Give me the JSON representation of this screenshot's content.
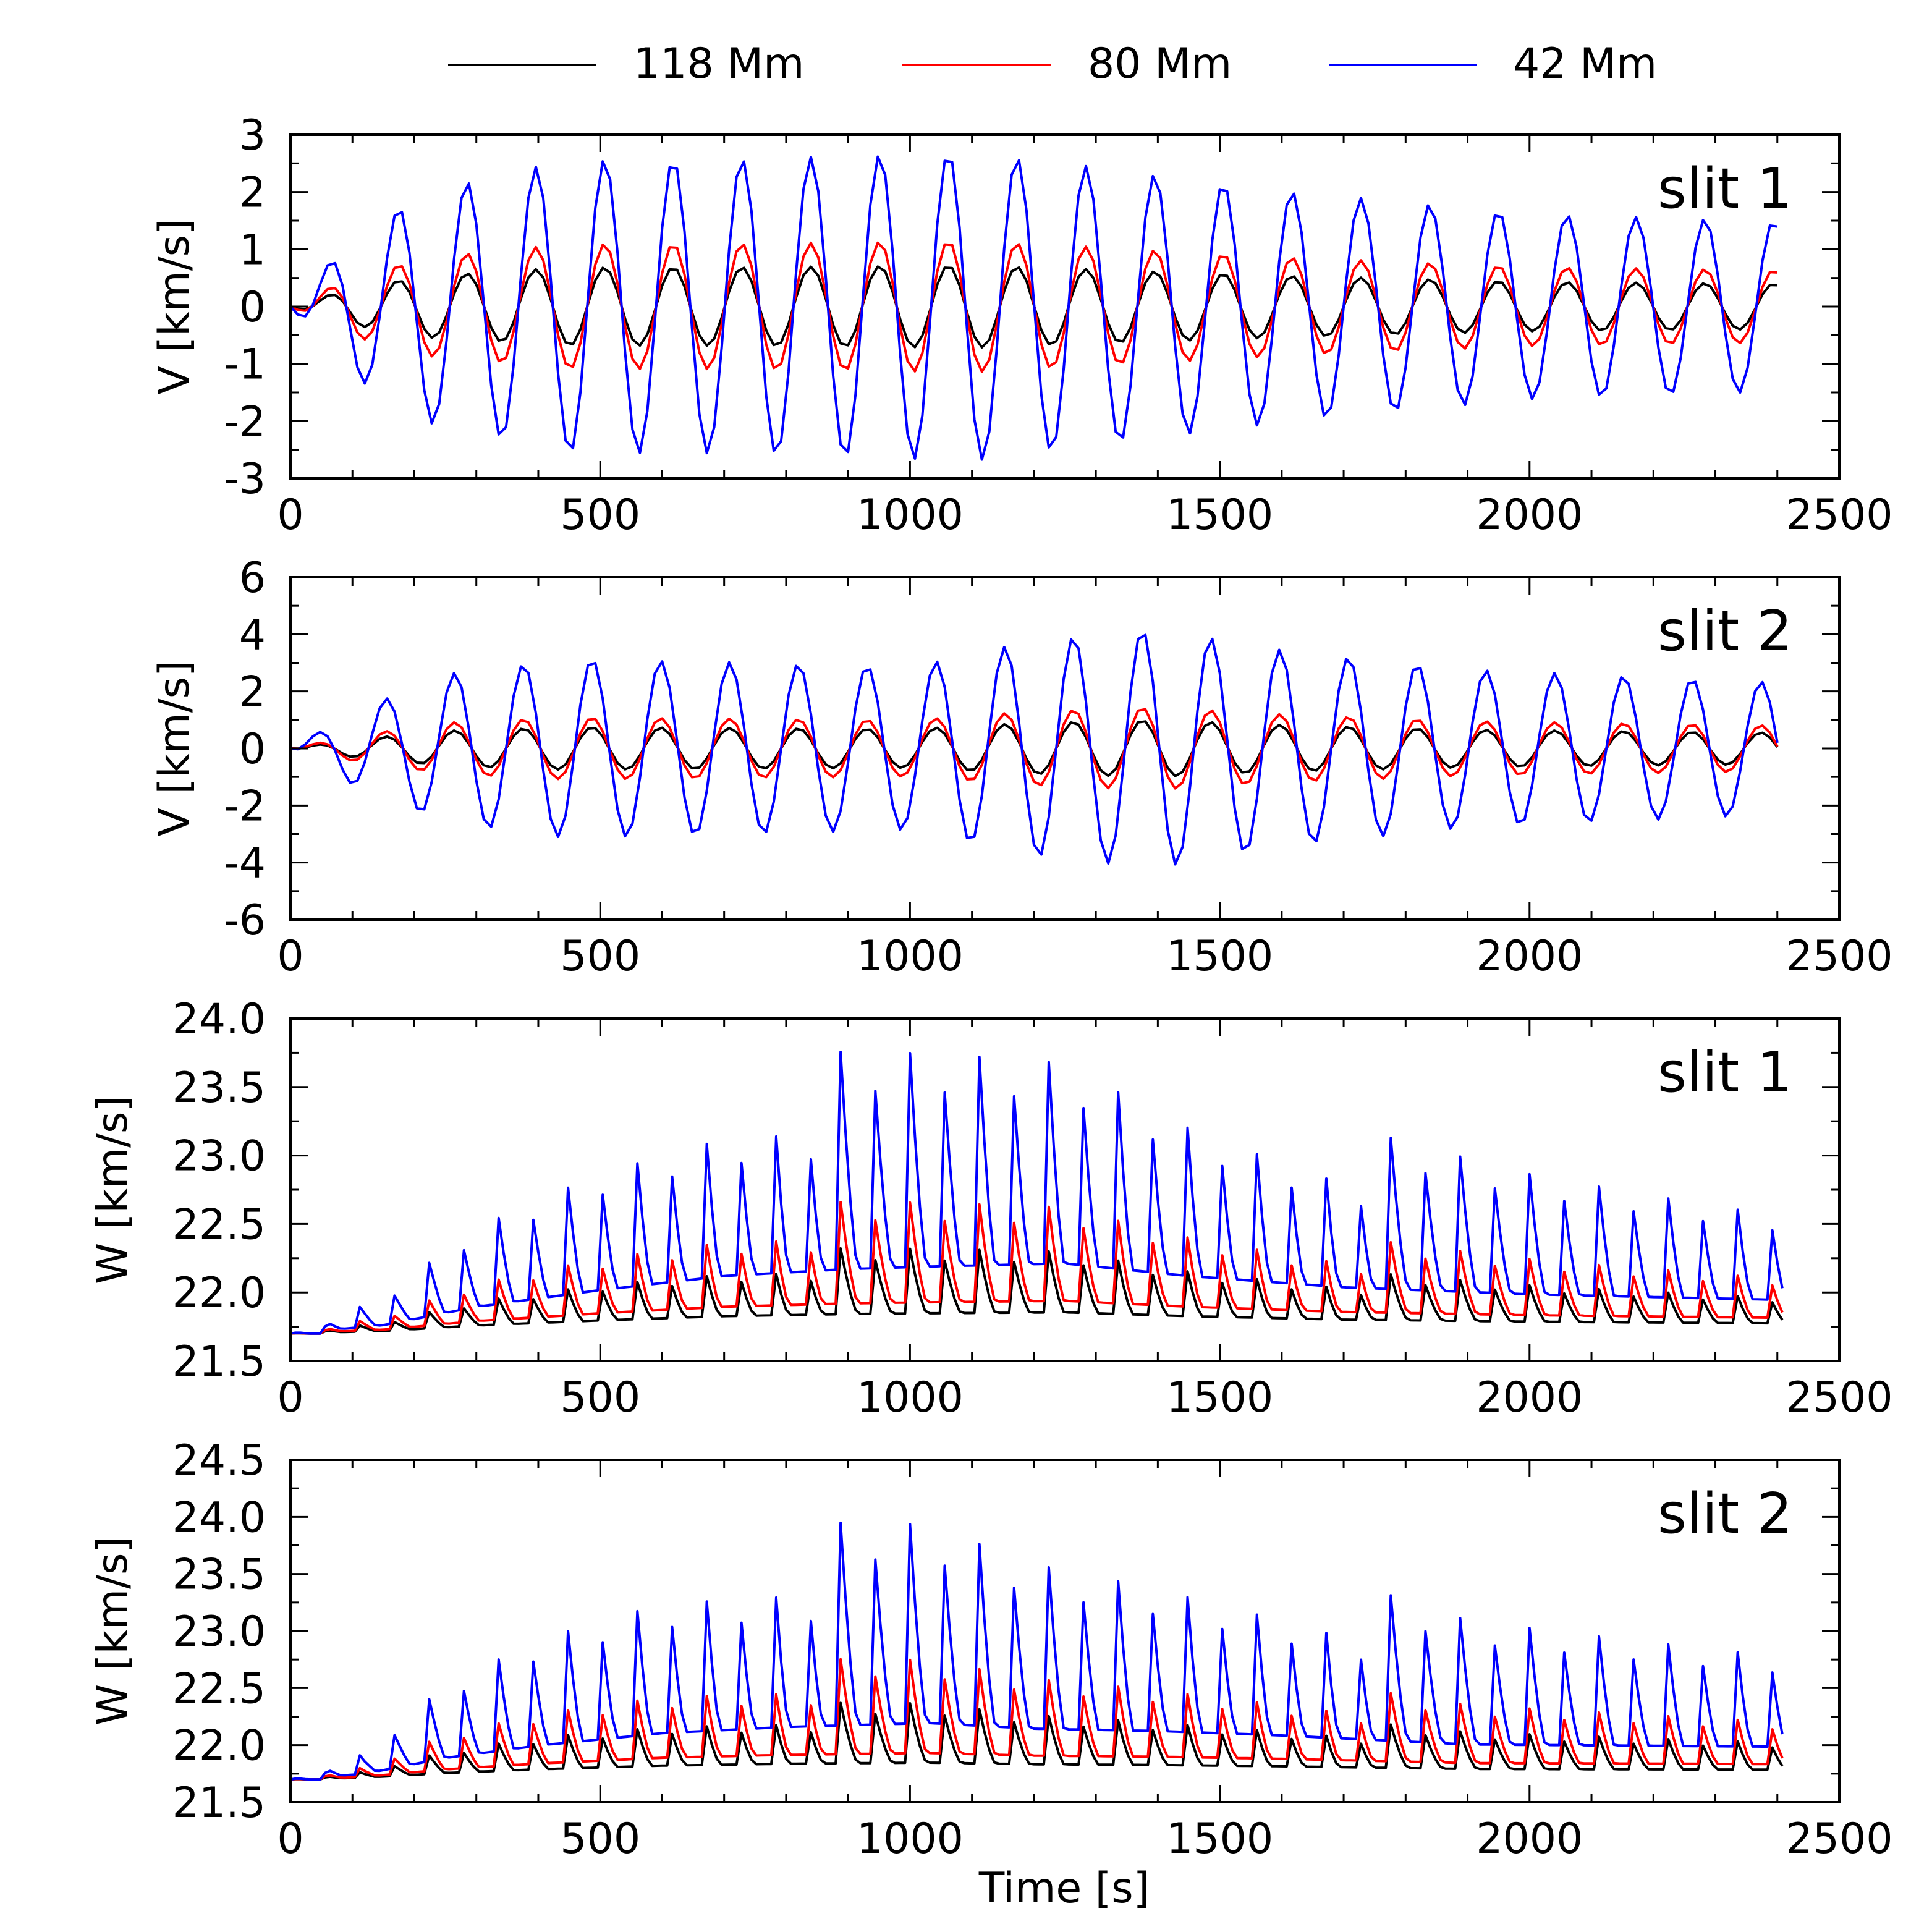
{
  "figure": {
    "xlabel": "Time [s]",
    "legend": [
      {
        "label": "118 Mm",
        "color": "#000000"
      },
      {
        "label": "80 Mm",
        "color": "#ff0000"
      },
      {
        "label": "42 Mm",
        "color": "#0000ff"
      }
    ]
  },
  "chart_data": [
    {
      "type": "line",
      "title": "slit 1",
      "xlabel": "",
      "ylabel": "V [km/s]",
      "xlim": [
        0,
        2500
      ],
      "ylim": [
        -3,
        3
      ],
      "xticks": [
        0,
        500,
        1000,
        1500,
        2000,
        2500
      ],
      "yticks": [
        -3,
        -2,
        -1,
        0,
        1,
        2,
        3
      ],
      "ytick_labels": [
        "-3",
        "-2",
        "-1",
        "0",
        "1",
        "2",
        "3"
      ],
      "legend_position": "top",
      "signal": {
        "kind": "oscillation",
        "period_s": 111,
        "phase_s": 35,
        "t_end": 2410,
        "baseline": 0,
        "envelope": [
          [
            0,
            0
          ],
          [
            100,
            0.45
          ],
          [
            220,
            0.75
          ],
          [
            450,
            0.95
          ],
          [
            700,
            0.95
          ],
          [
            1100,
            1.0
          ],
          [
            1300,
            0.9
          ],
          [
            1600,
            0.75
          ],
          [
            2000,
            0.6
          ],
          [
            2410,
            0.55
          ]
        ]
      },
      "series": [
        {
          "name": "118 Mm",
          "color": "#000000",
          "amplitude": 0.72
        },
        {
          "name": "80 Mm",
          "color": "#ff0000",
          "amplitude": 1.15
        },
        {
          "name": "42 Mm",
          "color": "#0000ff",
          "amplitude": 2.7
        }
      ]
    },
    {
      "type": "line",
      "title": "slit 2",
      "xlabel": "",
      "ylabel": "V [km/s]",
      "xlim": [
        0,
        2500
      ],
      "ylim": [
        -6,
        6
      ],
      "xticks": [
        0,
        500,
        1000,
        1500,
        2000,
        2500
      ],
      "yticks": [
        -6,
        -4,
        -2,
        0,
        2,
        4,
        6
      ],
      "ytick_labels": [
        "-6",
        "-4",
        "-2",
        "0",
        "2",
        "4",
        "6"
      ],
      "signal": {
        "kind": "oscillation",
        "period_s": 111,
        "phase_s": 15,
        "t_end": 2410,
        "baseline": 0,
        "envelope": [
          [
            0,
            0
          ],
          [
            100,
            0.3
          ],
          [
            250,
            0.62
          ],
          [
            450,
            0.75
          ],
          [
            700,
            0.72
          ],
          [
            1000,
            0.68
          ],
          [
            1200,
            0.9
          ],
          [
            1400,
            1.0
          ],
          [
            1600,
            0.82
          ],
          [
            1900,
            0.66
          ],
          [
            2410,
            0.55
          ]
        ]
      },
      "series": [
        {
          "name": "118 Mm",
          "color": "#000000",
          "amplitude": 1.0
        },
        {
          "name": "80 Mm",
          "color": "#ff0000",
          "amplitude": 1.45
        },
        {
          "name": "42 Mm",
          "color": "#0000ff",
          "amplitude": 4.2
        }
      ]
    },
    {
      "type": "line",
      "title": "slit 1",
      "xlabel": "",
      "ylabel": "W [km/s]",
      "xlim": [
        0,
        2500
      ],
      "ylim": [
        21.5,
        24.0
      ],
      "xticks": [
        0,
        500,
        1000,
        1500,
        2000,
        2500
      ],
      "yticks": [
        21.5,
        22.0,
        22.5,
        23.0,
        23.5,
        24.0
      ],
      "ytick_labels": [
        "21.5",
        "22.0",
        "22.5",
        "23.0",
        "23.5",
        "24.0"
      ],
      "signal": {
        "kind": "spiky",
        "period_s": 55.5,
        "t_end": 2410,
        "baseline": 21.7,
        "dip": 0.35,
        "envelope": [
          [
            0,
            0
          ],
          [
            150,
            0.12
          ],
          [
            300,
            0.38
          ],
          [
            500,
            0.62
          ],
          [
            700,
            0.82
          ],
          [
            900,
            0.92
          ],
          [
            1050,
            0.96
          ],
          [
            1250,
            1.0
          ],
          [
            1450,
            0.82
          ],
          [
            1700,
            0.66
          ],
          [
            2000,
            0.56
          ],
          [
            2410,
            0.48
          ]
        ]
      },
      "series": [
        {
          "name": "118 Mm",
          "color": "#000000",
          "amplitude": 0.68
        },
        {
          "name": "80 Mm",
          "color": "#ff0000",
          "amplitude": 1.05
        },
        {
          "name": "42 Mm",
          "color": "#0000ff",
          "amplitude": 2.25
        }
      ]
    },
    {
      "type": "line",
      "title": "slit 2",
      "xlabel": "Time [s]",
      "ylabel": "W [km/s]",
      "xlim": [
        0,
        2500
      ],
      "ylim": [
        21.5,
        24.5
      ],
      "xticks": [
        0,
        500,
        1000,
        1500,
        2000,
        2500
      ],
      "yticks": [
        21.5,
        22.0,
        22.5,
        23.0,
        23.5,
        24.0,
        24.5
      ],
      "ytick_labels": [
        "21.5",
        "22.0",
        "22.5",
        "23.0",
        "23.5",
        "24.0",
        "24.5"
      ],
      "signal": {
        "kind": "spiky",
        "period_s": 55.5,
        "t_end": 2410,
        "baseline": 21.7,
        "dip": 0.4,
        "envelope": [
          [
            0,
            0
          ],
          [
            120,
            0.1
          ],
          [
            250,
            0.38
          ],
          [
            400,
            0.6
          ],
          [
            600,
            0.82
          ],
          [
            800,
            0.93
          ],
          [
            1030,
            1.0
          ],
          [
            1200,
            0.9
          ],
          [
            1400,
            0.86
          ],
          [
            1600,
            0.78
          ],
          [
            1900,
            0.62
          ],
          [
            2410,
            0.58
          ]
        ]
      },
      "series": [
        {
          "name": "118 Mm",
          "color": "#000000",
          "amplitude": 0.7
        },
        {
          "name": "80 Mm",
          "color": "#ff0000",
          "amplitude": 1.1
        },
        {
          "name": "42 Mm",
          "color": "#0000ff",
          "amplitude": 2.35
        }
      ]
    }
  ]
}
